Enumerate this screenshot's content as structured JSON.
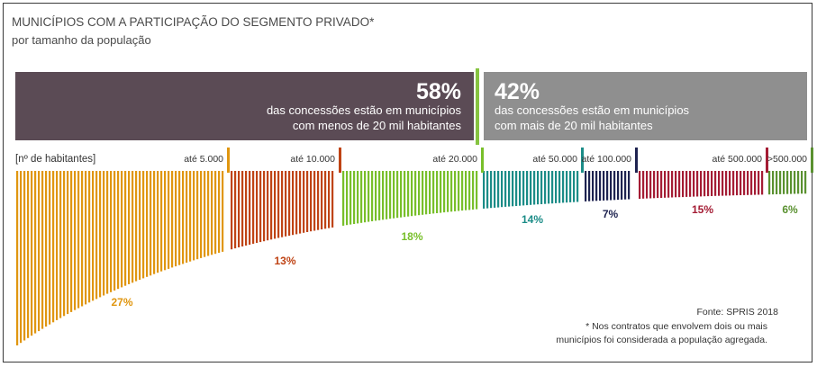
{
  "chart_data": {
    "type": "bar",
    "title": "MUNICÍPIOS COM A PARTICIPAÇÃO DO SEGMENTO PRIVADO*",
    "subtitle": "por tamanho da população",
    "axis_label": "[nº de habitantes]",
    "groups": [
      {
        "label": "até 5.000",
        "value": 27,
        "value_label": "27%",
        "color": "#e0960f"
      },
      {
        "label": "até 10.000",
        "value": 13,
        "value_label": "13%",
        "color": "#bf4314"
      },
      {
        "label": "até 20.000",
        "value": 18,
        "value_label": "18%",
        "color": "#78bf2a"
      },
      {
        "label": "até 50.000",
        "value": 14,
        "value_label": "14%",
        "color": "#1b8c87"
      },
      {
        "label": "até 100.000",
        "value": 7,
        "value_label": "7%",
        "color": "#1e2350"
      },
      {
        "label": "até 500.000",
        "value": 15,
        "value_label": "15%",
        "color": "#a41c34"
      },
      {
        "label": ">500.000",
        "value": 6,
        "value_label": "6%",
        "color": "#5a9130"
      }
    ],
    "summary": [
      {
        "percent": "58%",
        "text_line1": "das concessões estão em municípios",
        "text_line2": "com menos de 20 mil habitantes",
        "color": "#5b4b55"
      },
      {
        "percent": "42%",
        "text_line1": "das concessões estão em municípios",
        "text_line2": "com mais de 20 mil habitantes",
        "color": "#8f8f8f"
      }
    ],
    "divider_color": "#86c440",
    "source": "Fonte: SPRIS 2018",
    "note_line1": "* Nos contratos que envolvem dois ou mais",
    "note_line2": "municípios foi considerada a população agregada."
  }
}
